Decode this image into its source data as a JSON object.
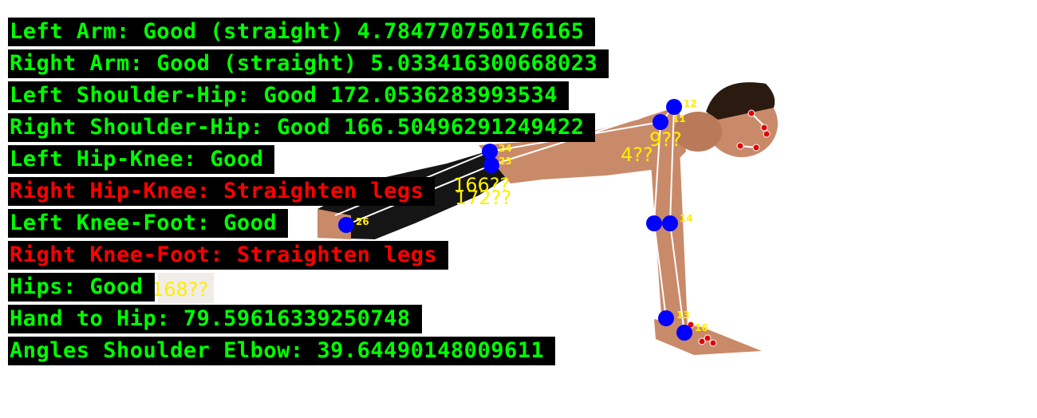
{
  "colors": {
    "good": "#00ff00",
    "bad": "#ff0000",
    "keypoint": "#0000ff",
    "face_point": "#e00000",
    "annotation": "#ffee00",
    "skin": "#c98a6a",
    "shorts": "#151515",
    "bone": "#ffffff"
  },
  "feedback": [
    {
      "text": "Left Arm: Good (straight) 4.784770750176165",
      "status": "good"
    },
    {
      "text": "Right Arm: Good (straight) 5.033416300668023",
      "status": "good"
    },
    {
      "text": "Left Shoulder-Hip: Good 172.0536283993534",
      "status": "good"
    },
    {
      "text": "Right Shoulder-Hip: Good 166.50496291249422",
      "status": "good"
    },
    {
      "text": "Left Hip-Knee: Good",
      "status": "good"
    },
    {
      "text": "Right Hip-Knee: Straighten legs",
      "status": "bad"
    },
    {
      "text": "Left Knee-Foot: Good",
      "status": "good"
    },
    {
      "text": "Right Knee-Foot: Straighten legs",
      "status": "bad"
    },
    {
      "text": "Hips: Good",
      "status": "good"
    },
    {
      "text": "Hand to Hip: 79.59616339250748",
      "status": "good"
    },
    {
      "text": "Angles Shoulder Elbow: 39.64490148009611",
      "status": "good"
    }
  ],
  "keypoint_labels": {
    "k12": "12",
    "k11": "11",
    "k23": "23",
    "k24": "24",
    "k14": "14",
    "k13": "13",
    "k16": "16",
    "k26": "26"
  },
  "angle_annotations": {
    "shoulder_left": "4??",
    "shoulder_right": "9??",
    "hip_166": "166??",
    "hip_172": "172??",
    "hips_168": "168??"
  }
}
